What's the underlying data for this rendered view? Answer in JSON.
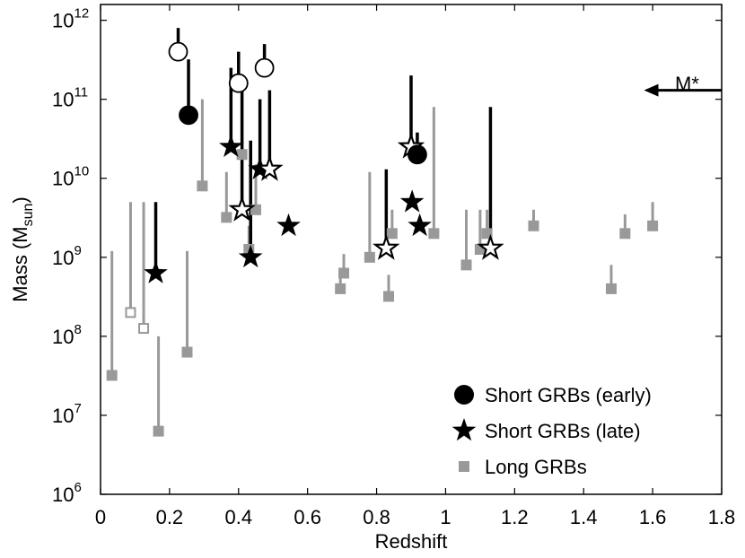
{
  "chart_data": {
    "type": "scatter",
    "xlabel": "Redshift",
    "ylabel_main": "Mass  (M",
    "ylabel_sub": "sun",
    "ylabel_close": ")",
    "xlim": [
      0,
      1.8
    ],
    "ylim_log10": [
      6,
      12.2
    ],
    "log_y": true,
    "grid": false,
    "legend_position": "bottom-right",
    "x_ticks": [
      {
        "value": 0,
        "label": "0"
      },
      {
        "value": 0.2,
        "label": "0.2"
      },
      {
        "value": 0.4,
        "label": "0.4"
      },
      {
        "value": 0.6,
        "label": "0.6"
      },
      {
        "value": 0.8,
        "label": "0.8"
      },
      {
        "value": 1.0,
        "label": "1"
      },
      {
        "value": 1.2,
        "label": "1.2"
      },
      {
        "value": 1.4,
        "label": "1.4"
      },
      {
        "value": 1.6,
        "label": "1.6"
      },
      {
        "value": 1.8,
        "label": "1.8"
      }
    ],
    "y_ticks": [
      {
        "exp": 6,
        "base": "10",
        "sup": "6"
      },
      {
        "exp": 7,
        "base": "10",
        "sup": "7"
      },
      {
        "exp": 8,
        "base": "10",
        "sup": "8"
      },
      {
        "exp": 9,
        "base": "10",
        "sup": "9"
      },
      {
        "exp": 10,
        "base": "10",
        "sup": "10"
      },
      {
        "exp": 11,
        "base": "10",
        "sup": "11"
      },
      {
        "exp": 12,
        "base": "10",
        "sup": "12"
      }
    ],
    "series": [
      {
        "name": "Short GRBs (early)",
        "marker": "circle",
        "color": "#000000",
        "points": [
          {
            "x": 0.225,
            "y": 400000000000.0,
            "y_up": 800000000000.0,
            "open": true
          },
          {
            "x": 0.255,
            "y": 63000000000.0,
            "y_up": 320000000000.0,
            "open": false
          },
          {
            "x": 0.4,
            "y": 160000000000.0,
            "y_up": 400000000000.0,
            "open": true
          },
          {
            "x": 0.475,
            "y": 250000000000.0,
            "y_up": 500000000000.0,
            "open": true
          },
          {
            "x": 0.918,
            "y": 20000000000.0,
            "y_up": 38000000000.0,
            "open": false
          }
        ]
      },
      {
        "name": "Short GRBs (late)",
        "marker": "star",
        "color": "#000000",
        "points": [
          {
            "x": 0.16,
            "y": 630000000.0,
            "y_up": 5000000000.0,
            "open": false
          },
          {
            "x": 0.378,
            "y": 25000000000.0,
            "y_up": 250000000000.0,
            "open": false
          },
          {
            "x": 0.41,
            "y": 4000000000.0,
            "y_up": 200000000000.0,
            "open": true
          },
          {
            "x": 0.435,
            "y": 1000000000.0,
            "y_up": 30000000000.0,
            "open": false
          },
          {
            "x": 0.462,
            "y": 13000000000.0,
            "y_up": 100000000000.0,
            "open": false
          },
          {
            "x": 0.49,
            "y": 13000000000.0,
            "y_up": 130000000000.0,
            "open": true
          },
          {
            "x": 0.545,
            "y": 2500000000.0,
            "y_up": 2500000000.0,
            "open": false
          },
          {
            "x": 0.828,
            "y": 1300000000.0,
            "y_up": 13000000000.0,
            "open": true
          },
          {
            "x": 0.9,
            "y": 25000000000.0,
            "y_up": 200000000000.0,
            "open": true
          },
          {
            "x": 0.903,
            "y": 5000000000.0,
            "y_up": 5000000000.0,
            "open": false
          },
          {
            "x": 0.925,
            "y": 2500000000.0,
            "y_up": 2500000000.0,
            "open": false
          },
          {
            "x": 1.13,
            "y": 1300000000.0,
            "y_up": 80000000000.0,
            "open": true
          }
        ]
      },
      {
        "name": "Long GRBs",
        "marker": "square",
        "color": "#999999",
        "points": [
          {
            "x": 0.033,
            "y": 32000000.0,
            "y_up": 1200000000.0,
            "open": false
          },
          {
            "x": 0.087,
            "y": 200000000.0,
            "y_up": 5000000000.0,
            "open": true
          },
          {
            "x": 0.125,
            "y": 126000000.0,
            "y_up": 5000000000.0,
            "open": true
          },
          {
            "x": 0.168,
            "y": 6300000.0,
            "y_up": 100000000.0,
            "open": false
          },
          {
            "x": 0.251,
            "y": 63000000.0,
            "y_up": 1200000000.0,
            "open": false
          },
          {
            "x": 0.295,
            "y": 8000000000.0,
            "y_up": 100000000000.0,
            "open": false
          },
          {
            "x": 0.365,
            "y": 3200000000.0,
            "y_up": 12000000000.0,
            "open": false
          },
          {
            "x": 0.41,
            "y": 20000000000.0,
            "y_up": 35000000000.0,
            "open": false
          },
          {
            "x": 0.43,
            "y": 1260000000.0,
            "y_up": 2500000000.0,
            "open": false
          },
          {
            "x": 0.45,
            "y": 4000000000.0,
            "y_up": 15000000000.0,
            "open": false
          },
          {
            "x": 0.695,
            "y": 400000000.0,
            "y_up": 700000000.0,
            "open": false
          },
          {
            "x": 0.705,
            "y": 630000000.0,
            "y_up": 1100000000.0,
            "open": false
          },
          {
            "x": 0.78,
            "y": 1000000000.0,
            "y_up": 12000000000.0,
            "open": false
          },
          {
            "x": 0.835,
            "y": 320000000.0,
            "y_up": 600000000.0,
            "open": false
          },
          {
            "x": 0.845,
            "y": 2000000000.0,
            "y_up": 4000000000.0,
            "open": false
          },
          {
            "x": 0.966,
            "y": 2000000000.0,
            "y_up": 80000000000.0,
            "open": false
          },
          {
            "x": 1.06,
            "y": 800000000.0,
            "y_up": 4000000000.0,
            "open": false
          },
          {
            "x": 1.1,
            "y": 1260000000.0,
            "y_up": 4000000000.0,
            "open": false
          },
          {
            "x": 1.12,
            "y": 2000000000.0,
            "y_up": 4000000000.0,
            "open": false
          },
          {
            "x": 1.255,
            "y": 2500000000.0,
            "y_up": 4000000000.0,
            "open": false
          },
          {
            "x": 1.48,
            "y": 400000000.0,
            "y_up": 800000000.0,
            "open": false
          },
          {
            "x": 1.52,
            "y": 2000000000.0,
            "y_up": 3500000000.0,
            "open": false
          },
          {
            "x": 1.6,
            "y": 2500000000.0,
            "y_up": 5000000000.0,
            "open": false
          }
        ]
      }
    ],
    "annotation": {
      "label": "M*",
      "arrow_y": 130000000000.0,
      "arrow_x_start": 1.8,
      "arrow_x_end": 1.575,
      "direction": "left"
    },
    "legend_entries": [
      {
        "label": "Short GRBs (early)",
        "marker": "circle",
        "color": "#000000"
      },
      {
        "label": "Short GRBs (late)",
        "marker": "star",
        "color": "#000000"
      },
      {
        "label": "Long GRBs",
        "marker": "square",
        "color": "#999999"
      }
    ]
  }
}
